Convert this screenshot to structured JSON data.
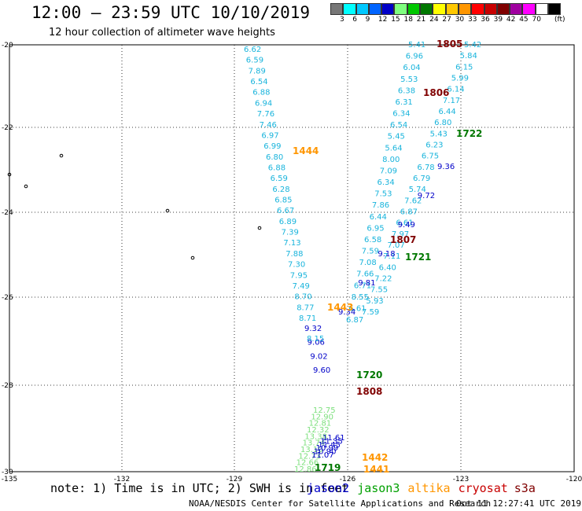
{
  "header": {
    "title": "12:00 – 23:59 UTC 10/10/2019",
    "subtitle": "12 hour collection of altimeter wave heights"
  },
  "legend": {
    "unit": "(ft)",
    "colors": [
      "#777777",
      "#00ffff",
      "#00c8ff",
      "#0064ff",
      "#0000c8",
      "#7fff7f",
      "#00c800",
      "#007800",
      "#ffff00",
      "#ffc800",
      "#ff9600",
      "#ff0000",
      "#c80000",
      "#7f0000",
      "#a000a0",
      "#ff00ff",
      "#ffffff",
      "#000000"
    ],
    "labels": [
      "3",
      "6",
      "9",
      "12",
      "15",
      "18",
      "21",
      "24",
      "27",
      "30",
      "33",
      "36",
      "39",
      "42",
      "45",
      "70"
    ]
  },
  "axes": {
    "lon_labels": [
      "-135",
      "-132",
      "-129",
      "-126",
      "-123",
      "-120"
    ],
    "lat_labels": [
      "-20",
      "-22",
      "-24",
      "-26",
      "-28",
      "-30"
    ]
  },
  "tracks": [
    {
      "name": "track-west-jason",
      "color": "#19b4dc",
      "labels": [
        "6.62",
        "6.59",
        "7.89",
        "6.54",
        "6.88",
        "6.94",
        "7.76",
        "7.46",
        "6.97",
        "6.99",
        "6.80",
        "6.88",
        "6.59",
        "6.28",
        "6.85",
        "6.67",
        "6.89",
        "7.39",
        "7.13",
        "7.88",
        "7.30",
        "7.95",
        "7.49",
        "8.70",
        "8.77",
        "8.71"
      ]
    },
    {
      "name": "track-west-dark",
      "color": "#0000c8",
      "labels": [
        "9.32",
        "9.06",
        "9.02",
        "9.60"
      ]
    },
    {
      "name": "track-west-light-blue",
      "color": "#19b4dc",
      "labels": [
        "8.15"
      ]
    },
    {
      "name": "track-mid",
      "color": "#19b4dc",
      "labels": [
        "5.41",
        "6.96",
        "6.04",
        "5.53",
        "6.38",
        "6.31",
        "6.34",
        "6.54",
        "5.45",
        "5.64",
        "8.00",
        "7.09",
        "6.34",
        "7.53",
        "7.86",
        "6.44",
        "6.95",
        "6.58",
        "7.59",
        "7.08",
        "7.66",
        "6.71",
        "8.55",
        "6.61",
        "6.87"
      ]
    },
    {
      "name": "track-east",
      "color": "#19b4dc",
      "labels": [
        "5.42",
        "5.84",
        "6.15",
        "5.99",
        "6.14",
        "7.17",
        "6.44",
        "6.80",
        "5.43",
        "6.23",
        "6.75",
        "6.78",
        "6.79",
        "5.74",
        "7.62",
        "6.87",
        "6.61",
        "7.97",
        "7.07",
        "7.11",
        "6.40",
        "7.22",
        "7.55",
        "5.93",
        "7.59"
      ]
    },
    {
      "name": "track-east-dark",
      "color": "#0000c8",
      "labels": [
        "9.36",
        "9.72",
        "9.49",
        "9.18",
        "9.81",
        "9.34"
      ]
    },
    {
      "name": "track-green",
      "color": "#7ee07e",
      "labels": [
        "12.75",
        "12.90",
        "12.81",
        "12.32",
        "13.38",
        "13.74",
        "13.10",
        "12.73",
        "12.66",
        "12.86"
      ]
    },
    {
      "name": "track-dark-south",
      "color": "#0000c8",
      "labels": [
        "11.61",
        "11.35",
        "11.45",
        "10.99",
        "10.90",
        "11.07"
      ]
    }
  ],
  "time_labels": [
    {
      "text": "1805",
      "color": "#800000"
    },
    {
      "text": "1806",
      "color": "#800000"
    },
    {
      "text": "1722",
      "color": "#007800"
    },
    {
      "text": "1444",
      "color": "#ff9600"
    },
    {
      "text": "1807",
      "color": "#800000"
    },
    {
      "text": "1721",
      "color": "#007800"
    },
    {
      "text": "1443",
      "color": "#ff9600"
    },
    {
      "text": "1720",
      "color": "#007800"
    },
    {
      "text": "1808",
      "color": "#800000"
    },
    {
      "text": "1719",
      "color": "#007800"
    },
    {
      "text": "1442",
      "color": "#ff9600"
    },
    {
      "text": "1441",
      "color": "#ff9600"
    }
  ],
  "note": {
    "text": "note: 1) Time is in UTC; 2) SWH is in feet",
    "satellites": [
      {
        "name": "jason2",
        "color": "#0000c8"
      },
      {
        "name": "jason3",
        "color": "#00a000"
      },
      {
        "name": "altika",
        "color": "#ff9600"
      },
      {
        "name": "cryosat",
        "color": "#c80000"
      },
      {
        "name": "s3a",
        "color": "#800000"
      }
    ]
  },
  "footer": {
    "source": "NOAA/NESDIS Center for Satellite Applications and Research",
    "timestamp": "Oct 11 12:27:41 UTC 2019"
  }
}
